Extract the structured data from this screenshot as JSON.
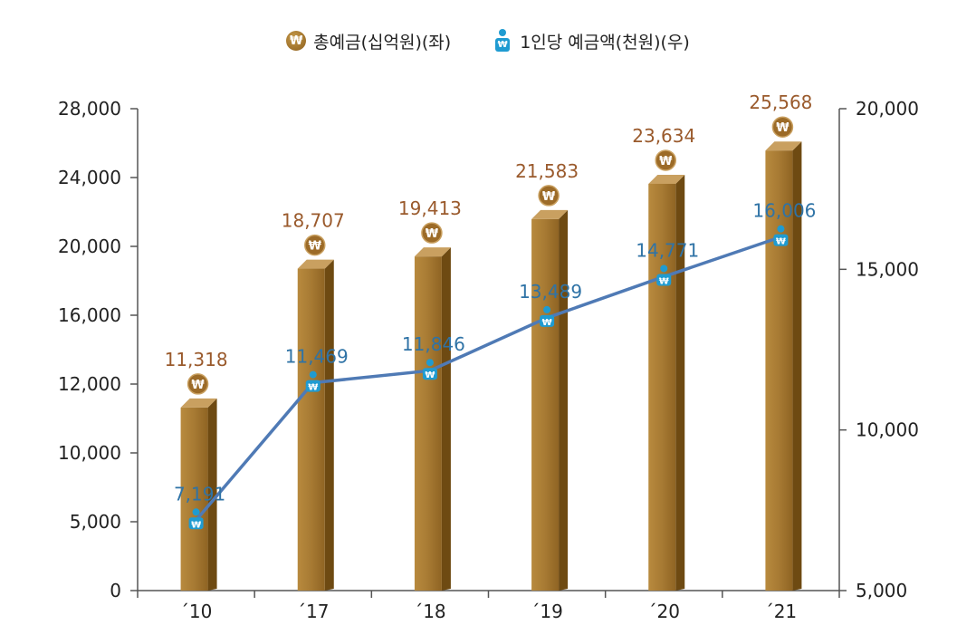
{
  "legend": {
    "bar_label": "총예금(십억원)(좌)",
    "line_label": "1인당  예금액(천원)(우)"
  },
  "colors": {
    "bar_front": "#a77a33",
    "bar_side": "#6e4a12",
    "bar_top": "#c9a060",
    "bar_value_label": "#9a5a2c",
    "line": "#4f7ab5",
    "line_value_label": "#2f73a6",
    "axis": "#555555"
  },
  "chart_data": {
    "type": "bar+line",
    "categories": [
      "´10",
      "´17",
      "´18",
      "´19",
      "´20",
      "´21"
    ],
    "series": [
      {
        "name": "총예금(십억원)(좌)",
        "type": "bar",
        "axis": "left",
        "values": [
          11318,
          18707,
          19413,
          21583,
          23634,
          25568
        ],
        "labels": [
          "11,318",
          "18,707",
          "19,413",
          "21,583",
          "23,634",
          "25,568"
        ]
      },
      {
        "name": "1인당  예금액(천원)(우)",
        "type": "line",
        "axis": "right",
        "values": [
          7191,
          11469,
          11846,
          13489,
          14771,
          16006
        ],
        "labels": [
          "7,191",
          "11,469",
          "11,846",
          "13,489",
          "14,771",
          "16,006"
        ]
      }
    ],
    "left_axis": {
      "tick_values": [
        0,
        5000,
        10000,
        12000,
        16000,
        20000,
        24000,
        28000
      ],
      "tick_labels": [
        "0",
        "5,000",
        "10,000",
        "12,000",
        "16,000",
        "20,000",
        "24,000",
        "28,000"
      ]
    },
    "right_axis": {
      "ylim": [
        5000,
        20000
      ],
      "tick_values": [
        5000,
        10000,
        15000,
        20000
      ],
      "tick_labels": [
        "5,000",
        "10,000",
        "15,000",
        "20,000"
      ]
    },
    "grid": false,
    "legend_position": "top-center"
  }
}
